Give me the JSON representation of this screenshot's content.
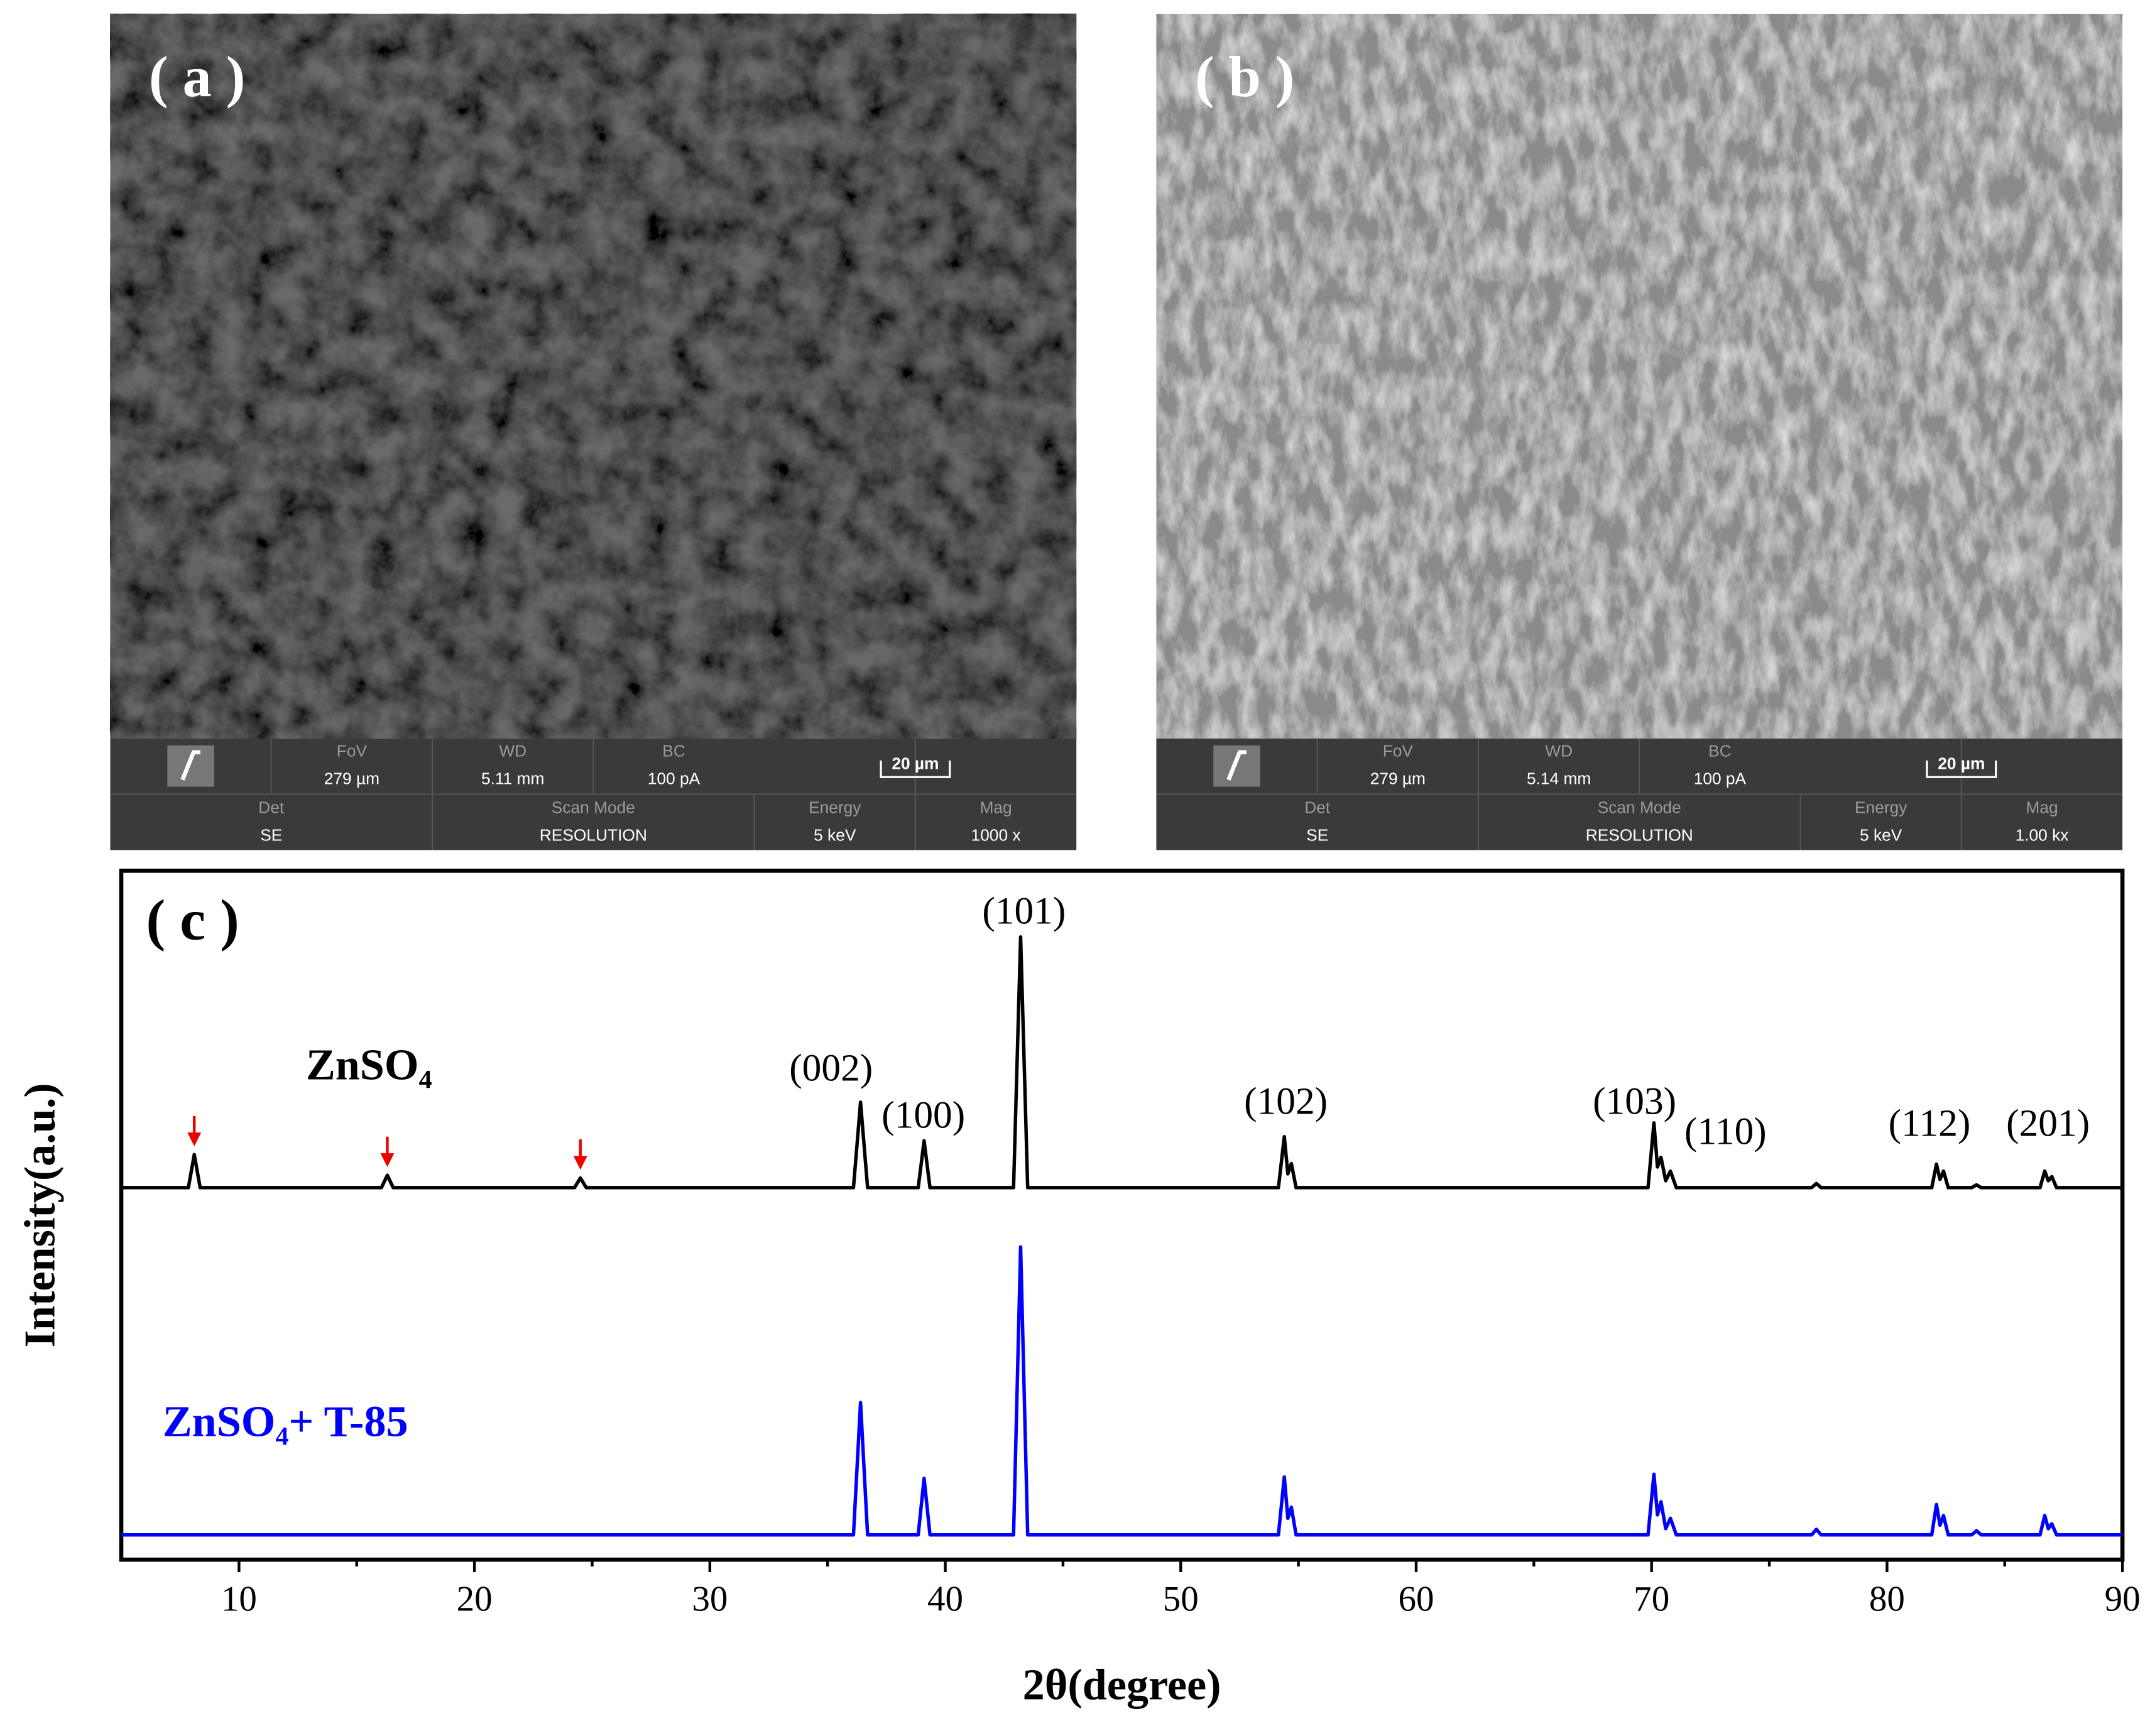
{
  "images": [
    {
      "label": "( a )",
      "top": [
        {
          "name": "FoV",
          "value": "279 µm"
        },
        {
          "name": "WD",
          "value": "5.11 mm"
        },
        {
          "name": "BC",
          "value": "100 pA"
        }
      ],
      "scale": "20 µm",
      "bottom": [
        {
          "name": "Det",
          "value": "SE"
        },
        {
          "name": "Scan Mode",
          "value": "RESOLUTION"
        },
        {
          "name": "Energy",
          "value": "5 keV"
        },
        {
          "name": "Mag",
          "value": "1000 x"
        }
      ]
    },
    {
      "label": "( b )",
      "top": [
        {
          "name": "FoV",
          "value": "279 µm"
        },
        {
          "name": "WD",
          "value": "5.14 mm"
        },
        {
          "name": "BC",
          "value": "100 pA"
        }
      ],
      "scale": "20 µm",
      "bottom": [
        {
          "name": "Det",
          "value": "SE"
        },
        {
          "name": "Scan Mode",
          "value": "RESOLUTION"
        },
        {
          "name": "Energy",
          "value": "5 keV"
        },
        {
          "name": "Mag",
          "value": "1.00 kx"
        }
      ]
    }
  ],
  "chart_data": {
    "type": "line",
    "panel_label": "( c )",
    "x_label": "2θ(degree)",
    "y_label": "Intensity(a.u.)",
    "xlim": [
      5,
      90
    ],
    "ylim": [
      0,
      100
    ],
    "xticks": [
      10,
      20,
      30,
      40,
      50,
      60,
      70,
      80,
      90
    ],
    "xminorticks": [
      15,
      25,
      35,
      45,
      55,
      65,
      75,
      85
    ],
    "x": [
      5,
      7.85,
      8.1,
      8.35,
      16.05,
      16.3,
      16.55,
      24.25,
      24.5,
      24.75,
      36.1,
      36.4,
      36.7,
      38.85,
      39.1,
      39.35,
      42.9,
      43.2,
      43.5,
      54.15,
      54.4,
      54.55,
      54.7,
      54.9,
      69.85,
      70.1,
      70.25,
      70.4,
      70.6,
      70.8,
      71.05,
      76.8,
      77.0,
      77.2,
      81.9,
      82.1,
      82.25,
      82.4,
      82.6,
      83.6,
      83.8,
      84.0,
      86.5,
      86.7,
      86.85,
      87.0,
      87.2,
      90
    ],
    "series": [
      {
        "name": "ZnSO₄",
        "color": "#000000",
        "values": [
          54,
          54,
          58.8,
          54,
          54,
          55.8,
          54,
          54,
          55.4,
          54,
          54,
          66.4,
          54,
          54,
          60.8,
          54,
          54,
          90.4,
          54,
          54,
          61.4,
          56,
          57.5,
          54,
          54,
          63.4,
          57,
          58.4,
          55,
          56.4,
          54,
          54,
          54.6,
          54,
          54,
          57.4,
          55.2,
          56.4,
          54,
          54,
          54.4,
          54,
          54,
          56.4,
          55,
          55.6,
          54,
          54
        ]
      },
      {
        "name": "ZnSO₄+ T-85",
        "color": "#0000ff",
        "values": [
          3.6,
          3.6,
          3.6,
          3.6,
          3.6,
          3.6,
          3.6,
          3.6,
          3.6,
          3.6,
          3.6,
          22.8,
          3.6,
          3.6,
          11.8,
          3.6,
          3.6,
          45.4,
          3.6,
          3.6,
          12,
          6,
          7.6,
          3.6,
          3.6,
          12.4,
          6.5,
          8.4,
          4.5,
          6,
          3.6,
          3.6,
          4.4,
          3.6,
          3.6,
          8,
          5,
          6.4,
          3.6,
          3.6,
          4.2,
          3.6,
          3.6,
          6.4,
          4.5,
          5.2,
          3.6,
          3.6
        ]
      }
    ],
    "annotations": [
      "(002)",
      "(100)",
      "(101)",
      "(102)",
      "(103)",
      "(110)",
      "(112)",
      "(201)"
    ]
  }
}
